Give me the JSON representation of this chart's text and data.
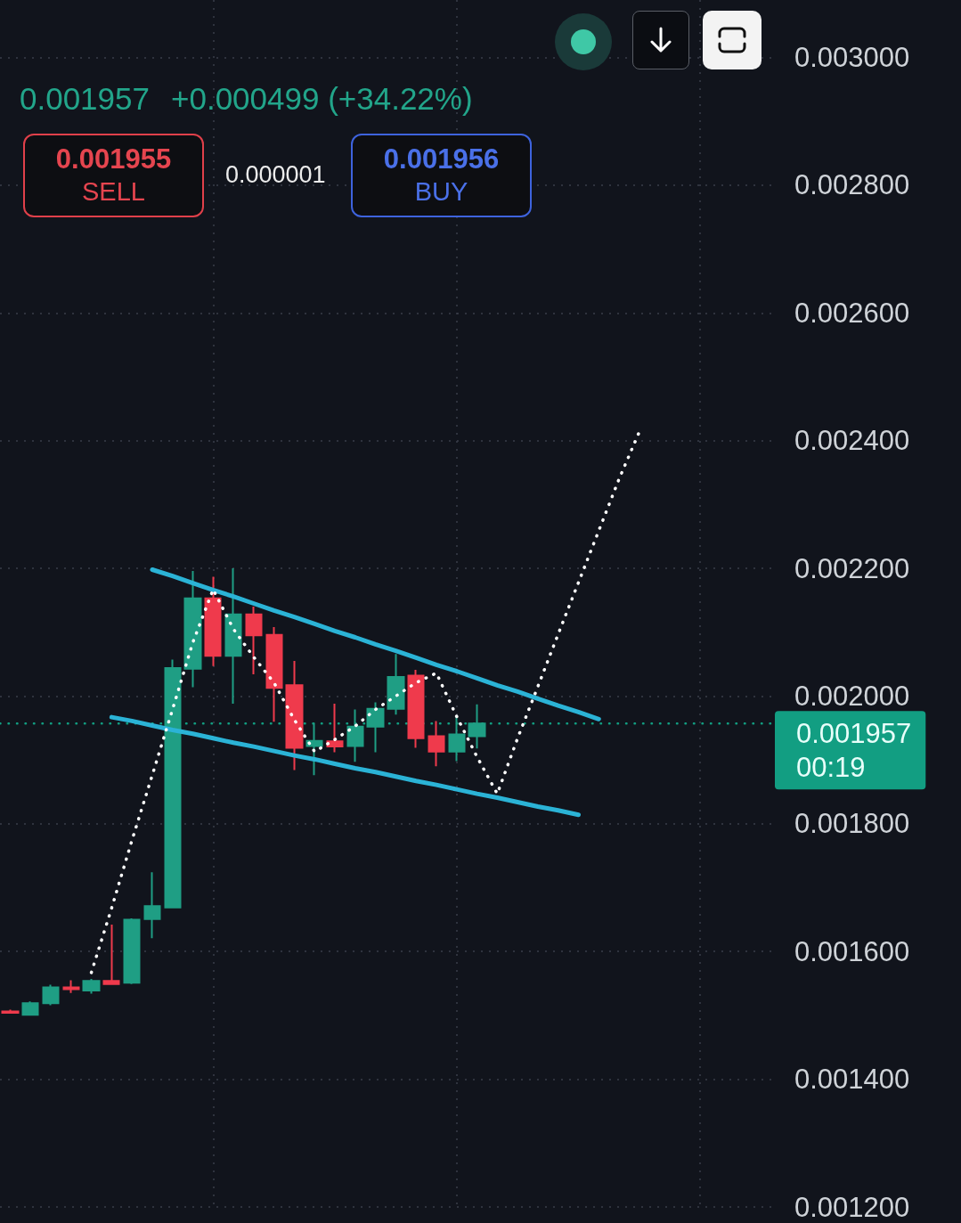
{
  "chart_data": {
    "type": "candlestick",
    "categories": [
      null,
      null,
      null,
      null,
      null,
      null,
      null,
      null,
      null,
      null,
      null,
      null,
      null,
      null,
      null,
      null,
      null,
      null,
      null,
      null,
      null,
      null,
      null,
      null,
      null,
      null,
      null,
      null,
      null,
      null,
      null,
      null,
      null,
      null,
      null,
      null,
      null,
      null
    ],
    "series": [
      {
        "ohlc": [
          [
            0.001506,
            0.001509,
            0.001503,
            0.001504
          ],
          [
            0.001501,
            0.001522,
            0.0015,
            0.001519
          ],
          [
            0.001519,
            0.001548,
            0.001516,
            0.001544
          ],
          [
            0.001544,
            0.001555,
            0.001535,
            0.001541
          ],
          [
            0.001539,
            0.001557,
            0.001534,
            0.001554
          ],
          [
            0.001554,
            0.001642,
            0.001548,
            0.001549
          ],
          [
            0.001551,
            0.001652,
            0.001549,
            0.00165
          ],
          [
            0.001651,
            0.001724,
            0.001621,
            0.001671
          ],
          [
            0.001669,
            0.002057,
            0.001668,
            0.002044
          ],
          [
            0.002043,
            0.002196,
            0.002014,
            0.002153
          ],
          [
            0.002153,
            0.002187,
            0.002047,
            0.002063
          ],
          [
            0.002063,
            0.0022,
            0.001988,
            0.002128
          ],
          [
            0.002128,
            0.00214,
            0.002034,
            0.002095
          ],
          [
            0.002096,
            0.002108,
            0.00196,
            0.002013
          ],
          [
            0.002017,
            0.002055,
            0.001884,
            0.001919
          ],
          [
            0.001922,
            0.001958,
            0.001876,
            0.00193
          ],
          [
            0.001929,
            0.001988,
            0.001912,
            0.001921
          ],
          [
            0.001922,
            0.001979,
            0.001897,
            0.001952
          ],
          [
            0.001952,
            0.00199,
            0.001912,
            0.00198
          ],
          [
            0.00198,
            0.002066,
            0.001971,
            0.00203
          ],
          [
            0.002032,
            0.002041,
            0.001919,
            0.001934
          ],
          [
            0.001937,
            0.001961,
            0.00189,
            0.001913
          ],
          [
            0.001913,
            0.001968,
            0.001898,
            0.00194
          ],
          [
            0.001937,
            0.001987,
            0.001918,
            0.001957
          ],
          null,
          null,
          null,
          null,
          null,
          null,
          null,
          null,
          null,
          null,
          null,
          null,
          null,
          null
        ],
        "colors": [
          "#ef3a4c",
          "#1f9e84",
          "#1f9e84",
          "#ef3a4c",
          "#1f9e84",
          "#ef3a4c",
          "#1f9e84",
          "#1f9e84",
          "#1f9e84",
          "#1f9e84",
          "#ef3a4c",
          "#1f9e84",
          "#ef3a4c",
          "#ef3a4c",
          "#ef3a4c",
          "#1f9e84",
          "#ef3a4c",
          "#1f9e84",
          "#1f9e84",
          "#1f9e84",
          "#ef3a4c",
          "#ef3a4c",
          "#1f9e84",
          "#1f9e84",
          null,
          null,
          null,
          null,
          null,
          null,
          null,
          null,
          null,
          null,
          null,
          null,
          null,
          null
        ]
      },
      {
        "type": "line",
        "color": "#2bb3d6",
        "values": [
          null,
          null,
          null,
          null,
          null,
          null,
          null,
          0.002198,
          0.002188,
          0.002177,
          0.002166,
          0.002156,
          0.002145,
          0.002134,
          0.002124,
          0.002113,
          0.002102,
          0.002092,
          0.002081,
          0.002071,
          0.00206,
          0.002049,
          0.002039,
          0.002028,
          0.002017,
          0.002007,
          0.001996,
          0.001985,
          0.001975,
          0.001964,
          null,
          null,
          null,
          null,
          null,
          null,
          null,
          null
        ]
      },
      {
        "type": "line",
        "color": "#2bb3d6",
        "values": [
          null,
          null,
          null,
          null,
          null,
          0.001967,
          0.001961,
          0.001954,
          0.001947,
          0.001941,
          0.001934,
          0.001927,
          0.001921,
          0.001914,
          0.001907,
          0.001901,
          0.001894,
          0.001887,
          0.001881,
          0.001874,
          0.001867,
          0.001861,
          0.001854,
          0.001847,
          0.001841,
          0.001834,
          0.001827,
          0.001821,
          0.001814,
          null,
          null,
          null,
          null,
          null,
          null,
          null,
          null,
          null
        ]
      },
      {
        "type": "line",
        "color": "#ffffff",
        "line_style": "dotted",
        "values": [
          null,
          null,
          null,
          null,
          0.001567,
          0.001668,
          0.001774,
          0.001876,
          0.001979,
          0.002084,
          0.002167,
          0.002105,
          0.002061,
          0.002021,
          0.001963,
          0.001913,
          0.001932,
          0.001953,
          0.001979,
          0.002,
          0.002021,
          0.002036,
          0.001968,
          0.001905,
          0.001847,
          0.001934,
          0.002015,
          0.002097,
          0.002178,
          0.002259,
          0.00234,
          0.002414,
          null,
          null,
          null,
          null,
          null,
          null
        ]
      }
    ],
    "ylim": [
      0.0012,
      0.00309
    ],
    "yticks": [
      {
        "value": 0.0012,
        "label": "0.001200"
      },
      {
        "value": 0.0014,
        "label": "0.001400"
      },
      {
        "value": 0.0016,
        "label": "0.001600"
      },
      {
        "value": 0.0018,
        "label": "0.001800"
      },
      {
        "value": 0.002,
        "label": "0.002000"
      },
      {
        "value": 0.0022,
        "label": "0.002200"
      },
      {
        "value": 0.0024,
        "label": "0.002400"
      },
      {
        "value": 0.0026,
        "label": "0.002600"
      },
      {
        "value": 0.0028,
        "label": "0.002800"
      },
      {
        "value": 0.003,
        "label": "0.003000"
      }
    ],
    "tick_labels": "y",
    "grid": true,
    "marker": "none",
    "ref_lines": [
      {
        "axis": "y",
        "value": 0.001957,
        "label": "0.001957\n00:19",
        "color": "#129e82",
        "line_style": "dotted"
      }
    ],
    "annotations": [
      "0.001957",
      "+0.000499 (+34.22%)",
      "0.001955",
      "SELL",
      "0.000001",
      "0.001956",
      "BUY"
    ]
  }
}
